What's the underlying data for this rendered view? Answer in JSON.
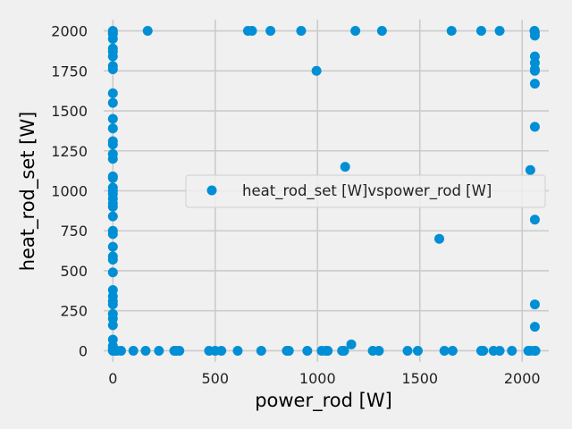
{
  "chart_data": {
    "type": "scatter",
    "xlabel": "power_rod [W]",
    "ylabel": "heat_rod_set [W]",
    "xlim": [
      -45,
      2130
    ],
    "ylim": [
      -70,
      2070
    ],
    "xticks": [
      0,
      500,
      1000,
      1500,
      2000
    ],
    "yticks": [
      0,
      250,
      500,
      750,
      1000,
      1250,
      1500,
      1750,
      2000
    ],
    "xtick_labels": [
      "0",
      "500",
      "1000",
      "1500",
      "2000"
    ],
    "ytick_labels": [
      "0",
      "250",
      "500",
      "750",
      "1000",
      "1250",
      "1500",
      "1750",
      "2000"
    ],
    "grid": true,
    "legend_position": "center-right",
    "series": [
      {
        "name": "heat_rod_set [W]vspower_rod [W]",
        "color": "#008fd5",
        "points": [
          [
            0,
            2000
          ],
          [
            0,
            1990
          ],
          [
            0,
            1980
          ],
          [
            0,
            1950
          ],
          [
            0,
            1890
          ],
          [
            0,
            1870
          ],
          [
            0,
            1840
          ],
          [
            0,
            1780
          ],
          [
            0,
            1760
          ],
          [
            0,
            1610
          ],
          [
            0,
            1550
          ],
          [
            0,
            1450
          ],
          [
            0,
            1390
          ],
          [
            0,
            1310
          ],
          [
            0,
            1290
          ],
          [
            0,
            1230
          ],
          [
            0,
            1200
          ],
          [
            0,
            1090
          ],
          [
            0,
            1080
          ],
          [
            0,
            1020
          ],
          [
            0,
            1000
          ],
          [
            0,
            980
          ],
          [
            0,
            950
          ],
          [
            0,
            920
          ],
          [
            0,
            900
          ],
          [
            0,
            840
          ],
          [
            0,
            750
          ],
          [
            0,
            730
          ],
          [
            0,
            650
          ],
          [
            0,
            590
          ],
          [
            0,
            570
          ],
          [
            0,
            490
          ],
          [
            0,
            380
          ],
          [
            0,
            340
          ],
          [
            0,
            310
          ],
          [
            0,
            290
          ],
          [
            0,
            230
          ],
          [
            0,
            200
          ],
          [
            0,
            160
          ],
          [
            0,
            70
          ],
          [
            0,
            30
          ],
          [
            0,
            15
          ],
          [
            0,
            5
          ],
          [
            0,
            0
          ],
          [
            10,
            0
          ],
          [
            20,
            0
          ],
          [
            40,
            0
          ],
          [
            100,
            0
          ],
          [
            160,
            0
          ],
          [
            225,
            0
          ],
          [
            300,
            0
          ],
          [
            310,
            0
          ],
          [
            325,
            0
          ],
          [
            470,
            0
          ],
          [
            500,
            0
          ],
          [
            530,
            0
          ],
          [
            610,
            0
          ],
          [
            725,
            0
          ],
          [
            850,
            0
          ],
          [
            860,
            0
          ],
          [
            950,
            0
          ],
          [
            1020,
            0
          ],
          [
            1040,
            0
          ],
          [
            1050,
            0
          ],
          [
            1120,
            0
          ],
          [
            1130,
            0
          ],
          [
            1270,
            0
          ],
          [
            1300,
            0
          ],
          [
            1440,
            0
          ],
          [
            1490,
            0
          ],
          [
            1620,
            0
          ],
          [
            1660,
            0
          ],
          [
            1800,
            0
          ],
          [
            1810,
            0
          ],
          [
            1860,
            0
          ],
          [
            1890,
            0
          ],
          [
            1950,
            0
          ],
          [
            2030,
            0
          ],
          [
            2040,
            0
          ],
          [
            2060,
            0
          ],
          [
            2065,
            0
          ],
          [
            170,
            2000
          ],
          [
            660,
            2000
          ],
          [
            680,
            2000
          ],
          [
            770,
            2000
          ],
          [
            920,
            2000
          ],
          [
            1185,
            2000
          ],
          [
            1315,
            2000
          ],
          [
            1655,
            2000
          ],
          [
            1800,
            2000
          ],
          [
            1890,
            2000
          ],
          [
            2060,
            2000
          ],
          [
            2062,
            1990
          ],
          [
            2062,
            1970
          ],
          [
            995,
            1750
          ],
          [
            1135,
            1150
          ],
          [
            1165,
            40
          ],
          [
            1595,
            700
          ],
          [
            2040,
            1130
          ],
          [
            2062,
            1840
          ],
          [
            2062,
            1800
          ],
          [
            2062,
            1760
          ],
          [
            2062,
            1750
          ],
          [
            2062,
            1670
          ],
          [
            2062,
            1400
          ],
          [
            2062,
            820
          ],
          [
            2062,
            290
          ],
          [
            2062,
            150
          ]
        ]
      }
    ]
  }
}
